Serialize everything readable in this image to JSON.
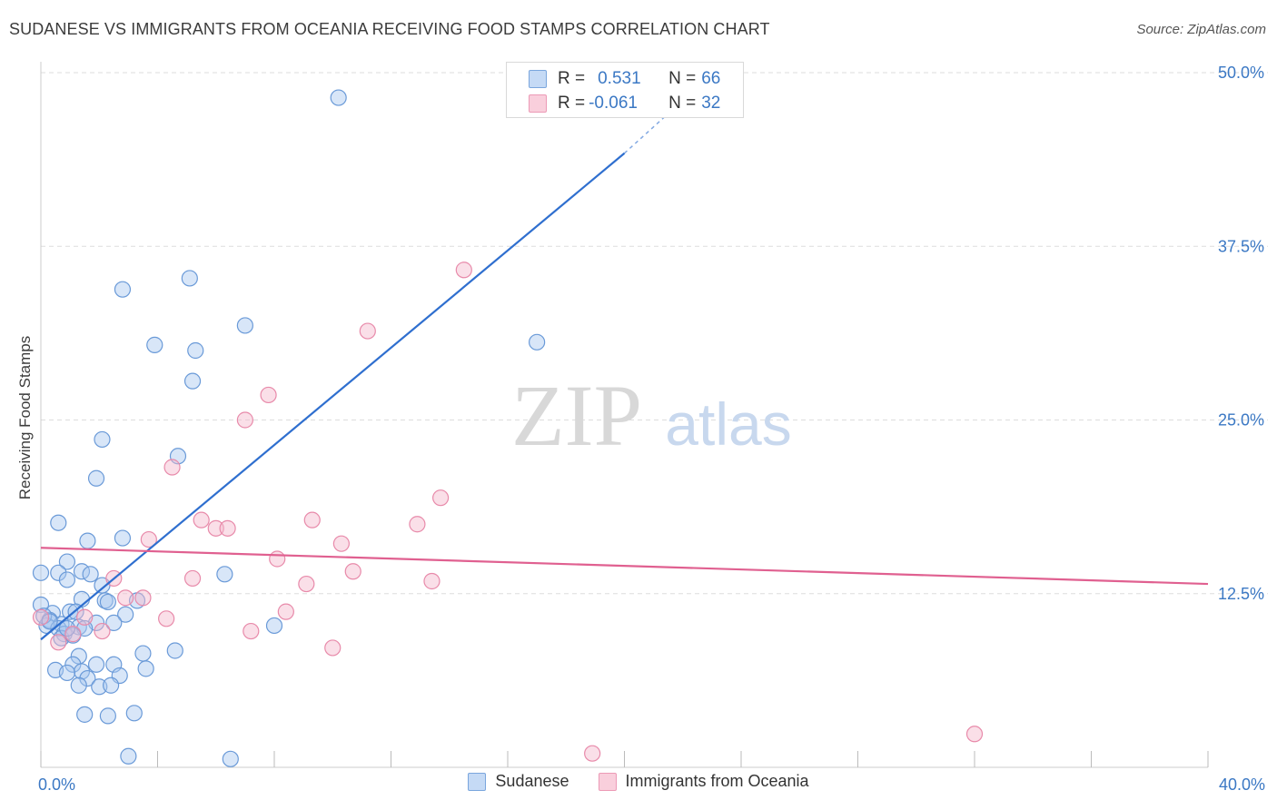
{
  "header": {
    "title": "SUDANESE VS IMMIGRANTS FROM OCEANIA RECEIVING FOOD STAMPS CORRELATION CHART",
    "source": "Source: ZipAtlas.com"
  },
  "watermark": {
    "zip": "ZIP",
    "atlas": "atlas"
  },
  "legend": {
    "rows": [
      {
        "r_key": "R = ",
        "r_value": "0.531",
        "n_key": "N = ",
        "n_value": "66"
      },
      {
        "r_key": "R = ",
        "r_value": "-0.061",
        "n_key": "N = ",
        "n_value": "32"
      }
    ]
  },
  "colors": {
    "sudanese_fill": "#a8c8f0",
    "sudanese_stroke": "#6a9ad8",
    "sudanese_line": "#2f6fcf",
    "oceania_fill": "#f5b8cc",
    "oceania_stroke": "#e88aaa",
    "oceania_line": "#e06090",
    "tick_label": "#3b78c4",
    "grid": "#dddddd"
  },
  "chart_data": {
    "type": "scatter",
    "ylabel": "Receiving Food Stamps",
    "xlim": [
      0,
      40
    ],
    "ylim": [
      0,
      50
    ],
    "x_tick_labels": [
      "0.0%",
      "40.0%"
    ],
    "y_ticks": [
      12.5,
      25.0,
      37.5,
      50.0
    ],
    "y_tick_labels": [
      "12.5%",
      "25.0%",
      "37.5%",
      "50.0%"
    ],
    "grid": true,
    "legend_position": "bottom",
    "series": [
      {
        "name": "Sudanese",
        "r": 0.531,
        "n": 66,
        "trend": {
          "x": [
            0,
            20
          ],
          "y": [
            9.2,
            44.2
          ],
          "dashed_to": [
            22,
            48.0
          ]
        },
        "points": [
          [
            10.2,
            48.2
          ],
          [
            2.8,
            34.4
          ],
          [
            5.1,
            35.2
          ],
          [
            7.0,
            31.8
          ],
          [
            3.9,
            30.4
          ],
          [
            5.3,
            30.0
          ],
          [
            17.0,
            30.6
          ],
          [
            5.2,
            27.8
          ],
          [
            2.1,
            23.6
          ],
          [
            4.7,
            22.4
          ],
          [
            1.9,
            20.8
          ],
          [
            0.6,
            17.6
          ],
          [
            2.8,
            16.5
          ],
          [
            1.6,
            16.3
          ],
          [
            0.9,
            14.8
          ],
          [
            1.4,
            14.1
          ],
          [
            0.6,
            14.0
          ],
          [
            0.0,
            14.0
          ],
          [
            1.7,
            13.9
          ],
          [
            6.3,
            13.9
          ],
          [
            0.9,
            13.5
          ],
          [
            2.1,
            13.1
          ],
          [
            2.2,
            12.0
          ],
          [
            1.4,
            12.1
          ],
          [
            3.3,
            12.0
          ],
          [
            2.3,
            11.9
          ],
          [
            0.4,
            11.1
          ],
          [
            1.0,
            11.2
          ],
          [
            2.9,
            11.0
          ],
          [
            0.3,
            10.6
          ],
          [
            0.7,
            10.3
          ],
          [
            0.2,
            10.2
          ],
          [
            0.6,
            10.0
          ],
          [
            1.9,
            10.4
          ],
          [
            1.3,
            10.1
          ],
          [
            2.5,
            10.4
          ],
          [
            1.5,
            10.0
          ],
          [
            0.8,
            9.6
          ],
          [
            0.7,
            9.3
          ],
          [
            1.1,
            9.5
          ],
          [
            8.0,
            10.2
          ],
          [
            3.5,
            8.2
          ],
          [
            1.3,
            8.0
          ],
          [
            4.6,
            8.4
          ],
          [
            1.1,
            7.4
          ],
          [
            2.5,
            7.4
          ],
          [
            1.9,
            7.4
          ],
          [
            3.6,
            7.1
          ],
          [
            0.5,
            7.0
          ],
          [
            1.4,
            6.9
          ],
          [
            0.9,
            6.8
          ],
          [
            1.6,
            6.4
          ],
          [
            2.7,
            6.6
          ],
          [
            1.3,
            5.9
          ],
          [
            2.0,
            5.8
          ],
          [
            2.4,
            5.9
          ],
          [
            1.5,
            3.8
          ],
          [
            2.3,
            3.7
          ],
          [
            3.2,
            3.9
          ],
          [
            3.0,
            0.8
          ],
          [
            6.5,
            0.6
          ],
          [
            0.0,
            11.7
          ],
          [
            0.1,
            10.9
          ],
          [
            0.3,
            10.5
          ],
          [
            0.9,
            10.0
          ],
          [
            1.2,
            11.2
          ]
        ]
      },
      {
        "name": "Immigrants from Oceania",
        "r": -0.061,
        "n": 32,
        "trend": {
          "x": [
            0,
            40
          ],
          "y": [
            15.8,
            13.2
          ]
        },
        "points": [
          [
            14.5,
            35.8
          ],
          [
            11.2,
            31.4
          ],
          [
            7.8,
            26.8
          ],
          [
            7.0,
            25.0
          ],
          [
            4.5,
            21.6
          ],
          [
            13.7,
            19.4
          ],
          [
            9.3,
            17.8
          ],
          [
            12.9,
            17.5
          ],
          [
            5.5,
            17.8
          ],
          [
            6.0,
            17.2
          ],
          [
            6.4,
            17.2
          ],
          [
            3.7,
            16.4
          ],
          [
            10.3,
            16.1
          ],
          [
            8.1,
            15.0
          ],
          [
            10.7,
            14.1
          ],
          [
            5.2,
            13.6
          ],
          [
            2.5,
            13.6
          ],
          [
            9.1,
            13.2
          ],
          [
            13.4,
            13.4
          ],
          [
            3.5,
            12.2
          ],
          [
            2.9,
            12.2
          ],
          [
            8.4,
            11.2
          ],
          [
            1.5,
            10.8
          ],
          [
            4.3,
            10.7
          ],
          [
            0.0,
            10.8
          ],
          [
            2.1,
            9.8
          ],
          [
            7.2,
            9.8
          ],
          [
            1.1,
            9.6
          ],
          [
            0.6,
            9.0
          ],
          [
            10.0,
            8.6
          ],
          [
            32.0,
            2.4
          ],
          [
            18.9,
            1.0
          ]
        ]
      }
    ]
  }
}
